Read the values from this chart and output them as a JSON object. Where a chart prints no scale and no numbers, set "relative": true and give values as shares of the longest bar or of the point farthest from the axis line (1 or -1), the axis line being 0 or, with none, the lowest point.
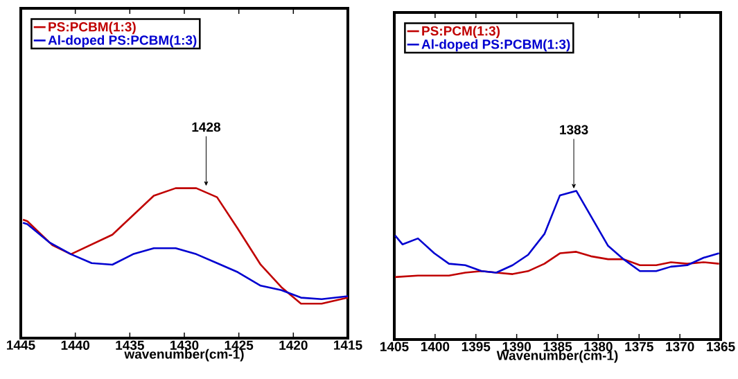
{
  "chart_data": [
    {
      "type": "line",
      "relative": true,
      "xlabel": "wavenumber(cm-1)",
      "xlim": [
        1445,
        1415
      ],
      "xticks": [
        1445,
        1440,
        1435,
        1430,
        1425,
        1420,
        1415
      ],
      "legend": "top left",
      "series": [
        {
          "name": "PS:PCBM(1:3)",
          "color": "#c00000",
          "x": [
            1444.8,
            1444.4,
            1442.1,
            1440.4,
            1436.6,
            1432.8,
            1430.8,
            1428.9,
            1427.0,
            1425.1,
            1423.0,
            1421.1,
            1419.3,
            1417.4,
            1415
          ],
          "values": [
            0.79,
            0.78,
            0.62,
            0.56,
            0.69,
            0.95,
            1.0,
            1.0,
            0.94,
            0.73,
            0.49,
            0.34,
            0.23,
            0.23,
            0.27
          ]
        },
        {
          "name": "Al-doped PS:PCBM(1:3)",
          "color": "#0000d0",
          "x": [
            1444.8,
            1444.4,
            1442.4,
            1440.4,
            1438.5,
            1436.6,
            1434.7,
            1432.8,
            1430.8,
            1428.9,
            1427.0,
            1425.1,
            1423.0,
            1421.1,
            1419.3,
            1417.4,
            1415
          ],
          "values": [
            0.77,
            0.76,
            0.64,
            0.56,
            0.5,
            0.49,
            0.56,
            0.6,
            0.6,
            0.56,
            0.5,
            0.44,
            0.35,
            0.32,
            0.27,
            0.26,
            0.28
          ]
        }
      ],
      "annotations": [
        {
          "text": "1428",
          "x": 1428,
          "y": 1.0
        }
      ]
    },
    {
      "type": "line",
      "relative": true,
      "xlabel": "Wavenumber(cm-1)",
      "xlim": [
        1405,
        1365
      ],
      "xticks": [
        1405,
        1400,
        1395,
        1390,
        1385,
        1380,
        1375,
        1370,
        1365
      ],
      "legend": "top left",
      "series": [
        {
          "name": "PS:PCM(1:3)",
          "color": "#c00000",
          "x": [
            1404.9,
            1402.1,
            1400.1,
            1398.3,
            1396.3,
            1394.3,
            1392.5,
            1390.5,
            1388.6,
            1386.6,
            1384.7,
            1382.7,
            1380.9,
            1378.8,
            1376.9,
            1374.9,
            1372.9,
            1371.1,
            1369.1,
            1367.1,
            1365.2
          ],
          "values": [
            0.42,
            0.43,
            0.43,
            0.43,
            0.45,
            0.46,
            0.45,
            0.44,
            0.46,
            0.51,
            0.58,
            0.59,
            0.56,
            0.54,
            0.54,
            0.5,
            0.5,
            0.52,
            0.51,
            0.52,
            0.51
          ]
        },
        {
          "name": "Al-doped PS:PCBM(1:3)",
          "color": "#0000d0",
          "x": [
            1404.9,
            1404.0,
            1402.1,
            1400.1,
            1398.3,
            1396.3,
            1394.3,
            1392.5,
            1390.5,
            1388.6,
            1386.6,
            1384.7,
            1382.7,
            1380.7,
            1378.8,
            1376.9,
            1374.9,
            1372.9,
            1371.1,
            1369.1,
            1367.1,
            1365.2
          ],
          "values": [
            0.7,
            0.64,
            0.68,
            0.58,
            0.51,
            0.5,
            0.46,
            0.45,
            0.5,
            0.57,
            0.71,
            0.97,
            1.0,
            0.81,
            0.63,
            0.54,
            0.46,
            0.46,
            0.49,
            0.5,
            0.55,
            0.58
          ]
        }
      ],
      "annotations": [
        {
          "text": "1383",
          "x": 1383,
          "y": 1.0
        }
      ]
    }
  ]
}
